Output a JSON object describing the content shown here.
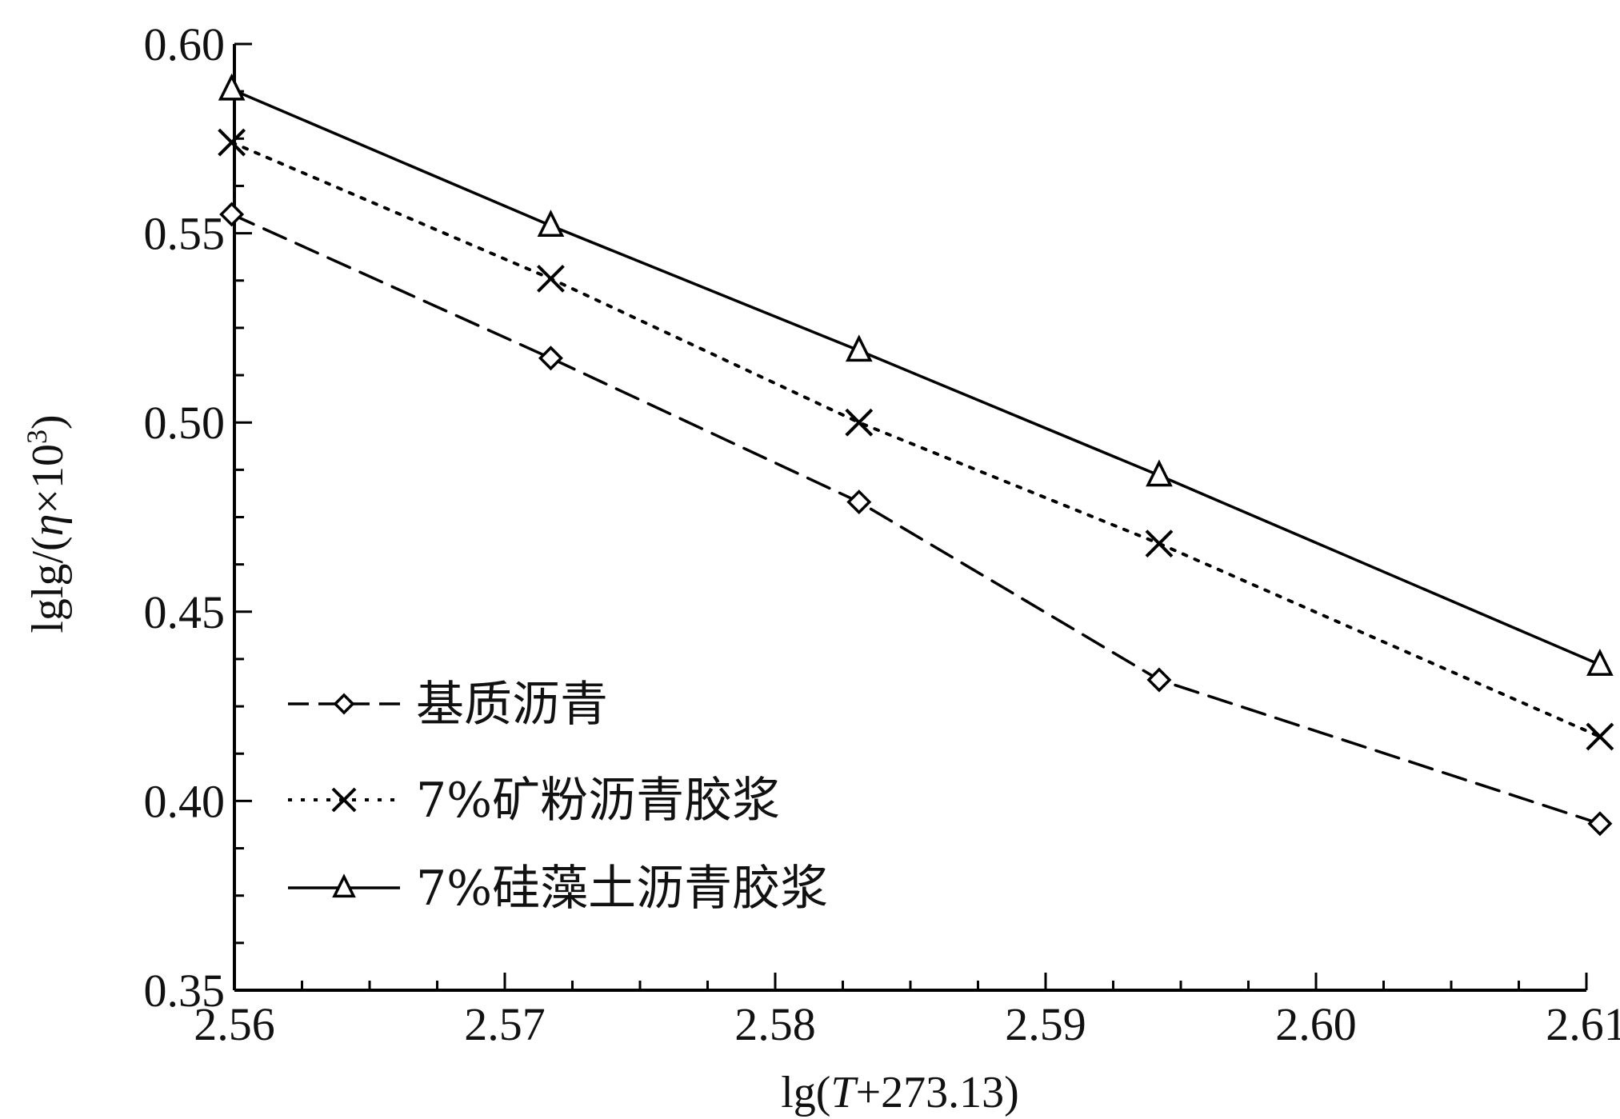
{
  "chart_data": {
    "type": "line",
    "title": "",
    "xlabel": "lg(T+273.13)",
    "xlabel_parts": {
      "prefix": "lg(",
      "italic": "T",
      "suffix": "+273.13)"
    },
    "ylabel": "lglg/(η×10^3)",
    "ylabel_parts": {
      "prefix": "lglg/(",
      "italic": "η",
      "middle": "×10",
      "superscript": "3",
      "suffix": ")"
    },
    "xlim": [
      2.56,
      2.61
    ],
    "ylim": [
      0.35,
      0.6
    ],
    "x_ticks": [
      "2.56",
      "2.57",
      "2.58",
      "2.59",
      "2.60",
      "2.61"
    ],
    "y_ticks": [
      "0.35",
      "0.40",
      "0.45",
      "0.50",
      "0.55",
      "0.60"
    ],
    "grid": false,
    "legend_position": "lower-left",
    "x": [
      2.5599,
      2.5717,
      2.5831,
      2.5942,
      2.6105
    ],
    "series": [
      {
        "name": "基质沥青",
        "marker": "diamond",
        "line_style": "dashed",
        "color": "#000000",
        "values": [
          0.555,
          0.517,
          0.479,
          0.432,
          0.394
        ]
      },
      {
        "name": "7%矿粉沥青胶浆",
        "marker": "x",
        "line_style": "dotted",
        "color": "#000000",
        "values": [
          0.574,
          0.538,
          0.5,
          0.468,
          0.417
        ]
      },
      {
        "name": "7%硅藻土沥青胶浆",
        "marker": "triangle",
        "line_style": "solid",
        "color": "#000000",
        "values": [
          0.588,
          0.552,
          0.519,
          0.486,
          0.436
        ]
      }
    ]
  }
}
